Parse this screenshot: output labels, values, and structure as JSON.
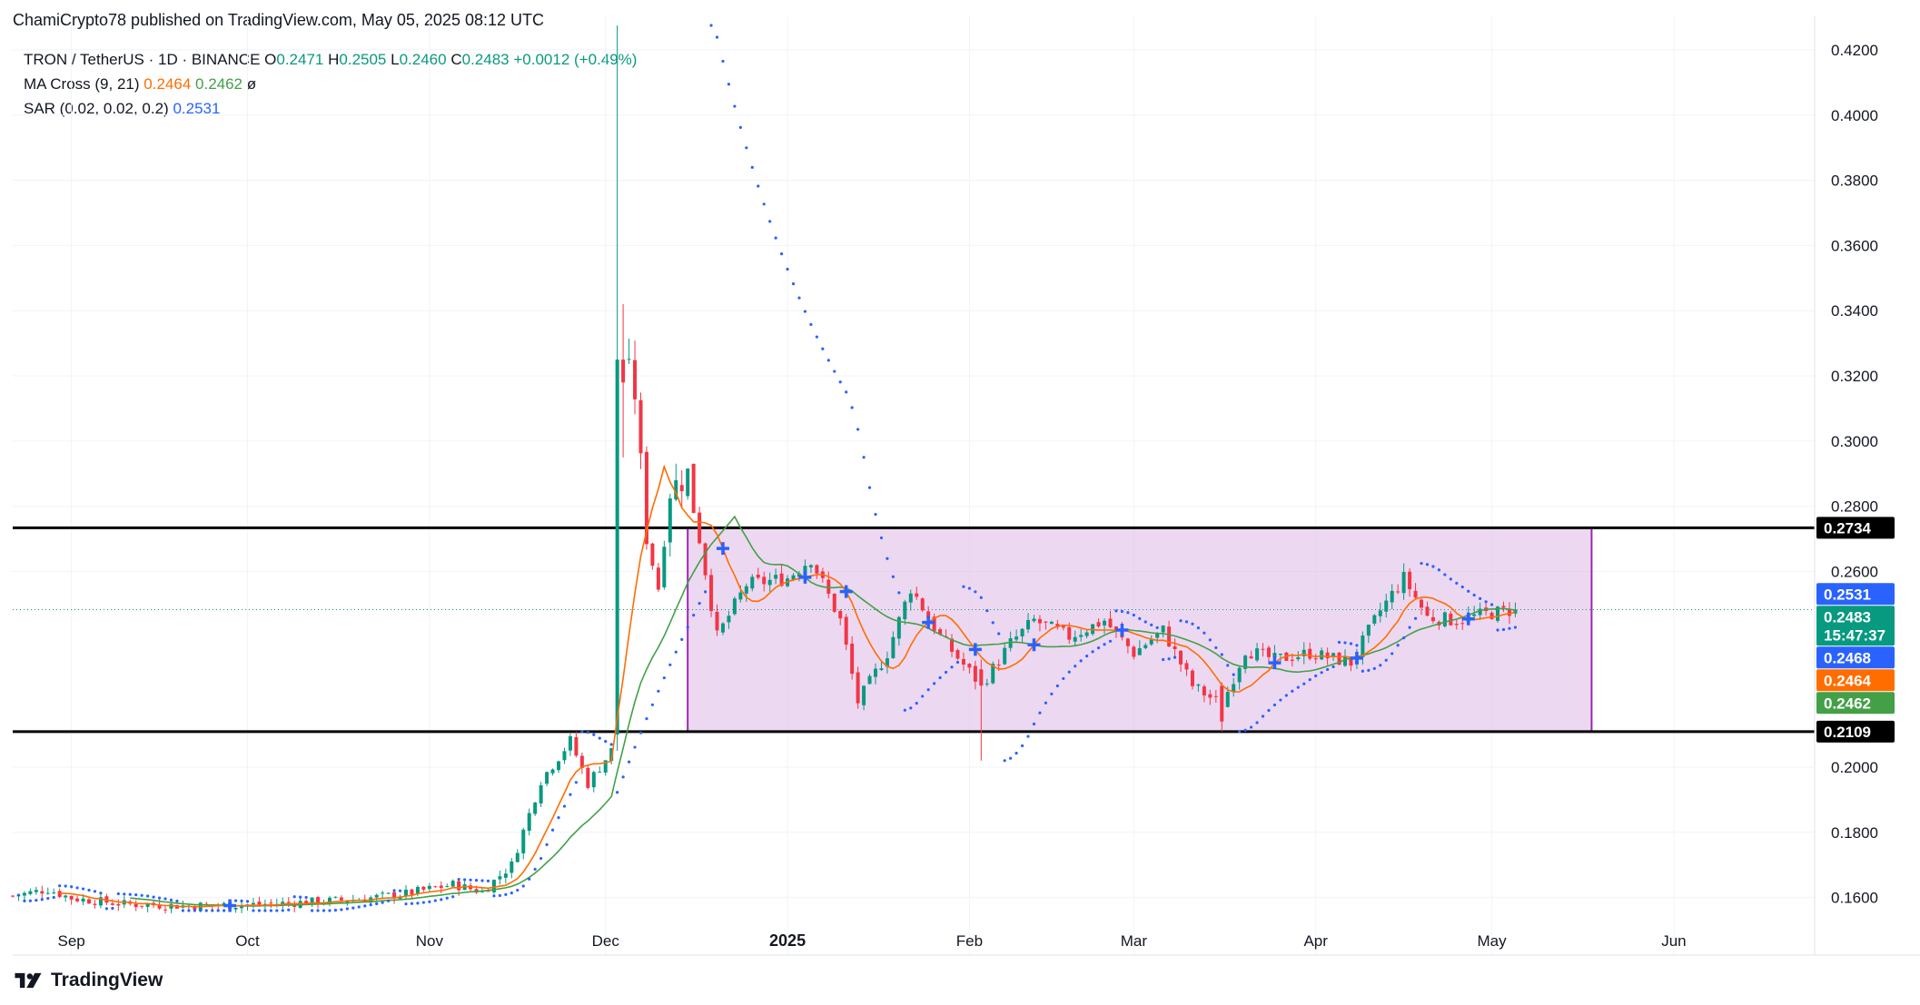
{
  "header": {
    "published_by": "ChamiCrypto78 published on TradingView.com, May 05, 2025 08:12 UTC"
  },
  "legend": {
    "symbol": "TRON / TetherUS · 1D · BINANCE",
    "o_label": "O",
    "o_value": "0.2471",
    "h_label": "H",
    "h_value": "0.2505",
    "l_label": "L",
    "l_value": "0.2460",
    "c_label": "C",
    "c_value": "0.2483",
    "change": "+0.0012 (+0.49%)",
    "ma_name": "MA Cross (9, 21)",
    "ma_fast": "0.2464",
    "ma_slow": "0.2462",
    "ma_extra": "ø",
    "sar_name": "SAR (0.02, 0.02, 0.2)",
    "sar_value": "0.2531"
  },
  "footer": {
    "brand": "TradingView"
  },
  "chart_data": {
    "type": "candlestick",
    "y_axis_ticks": [
      "0.4200",
      "0.4000",
      "0.3800",
      "0.3600",
      "0.3400",
      "0.3200",
      "0.3000",
      "0.2800",
      "0.2600",
      "0.2000",
      "0.1800",
      "0.1600"
    ],
    "x_axis_ticks": [
      {
        "label": "Sep",
        "date": "2024-09-01"
      },
      {
        "label": "Oct",
        "date": "2024-10-01"
      },
      {
        "label": "Nov",
        "date": "2024-11-01"
      },
      {
        "label": "Dec",
        "date": "2024-12-01"
      },
      {
        "label": "2025",
        "date": "2025-01-01"
      },
      {
        "label": "Feb",
        "date": "2025-02-01"
      },
      {
        "label": "Mar",
        "date": "2025-03-01"
      },
      {
        "label": "Apr",
        "date": "2025-04-01"
      },
      {
        "label": "May",
        "date": "2025-05-01"
      },
      {
        "label": "Jun",
        "date": "2025-06-01"
      }
    ],
    "y_range": [
      0.156,
      0.4275
    ],
    "x_range": [
      "2024-08-22",
      "2025-06-25"
    ],
    "price_tags": [
      {
        "label": "0.2734",
        "value": 0.2734,
        "color": "#000000",
        "text_color": "#ffffff"
      },
      {
        "label": "0.2531",
        "value": 0.2531,
        "color": "#2962ff",
        "text_color": "#ffffff"
      },
      {
        "label": "0.2483",
        "sub": "15:47:37",
        "value": 0.2483,
        "color": "#089981",
        "text_color": "#ffffff"
      },
      {
        "label": "0.2468",
        "value": 0.2468,
        "color": "#2962ff",
        "text_color": "#ffffff"
      },
      {
        "label": "0.2464",
        "value": 0.2464,
        "color": "#ff6d00",
        "text_color": "#ffffff"
      },
      {
        "label": "0.2462",
        "value": 0.2462,
        "color": "#43a047",
        "text_color": "#ffffff"
      },
      {
        "label": "0.2109",
        "value": 0.2109,
        "color": "#000000",
        "text_color": "#ffffff"
      }
    ],
    "resistance": 0.2734,
    "support": 0.2109,
    "range_box": {
      "from": "2024-12-15",
      "to": "2025-05-18",
      "top": 0.2734,
      "bottom": 0.2109,
      "color": "#e1bee7",
      "border": "#9c27b0"
    },
    "current_price": 0.2483,
    "colors": {
      "up": "#089981",
      "down": "#f23645",
      "ma_fast": "#ff6d00",
      "ma_slow": "#43a047",
      "sar": "#2962ff",
      "grid": "#f0f3fa"
    },
    "anchors": [
      [
        "2024-08-22",
        0.1605
      ],
      [
        "2024-08-28",
        0.1625
      ],
      [
        "2024-09-01",
        0.1598
      ],
      [
        "2024-09-10",
        0.158
      ],
      [
        "2024-09-20",
        0.1575
      ],
      [
        "2024-10-01",
        0.1578
      ],
      [
        "2024-10-10",
        0.1585
      ],
      [
        "2024-10-20",
        0.1595
      ],
      [
        "2024-10-28",
        0.1612
      ],
      [
        "2024-11-05",
        0.164
      ],
      [
        "2024-11-10",
        0.1618
      ],
      [
        "2024-11-15",
        0.17
      ],
      [
        "2024-11-20",
        0.196
      ],
      [
        "2024-11-25",
        0.208
      ],
      [
        "2024-11-28",
        0.195
      ],
      [
        "2024-12-02",
        0.205
      ],
      [
        "2024-12-04",
        0.325
      ],
      [
        "2024-12-06",
        0.315
      ],
      [
        "2024-12-08",
        0.27
      ],
      [
        "2024-12-10",
        0.255
      ],
      [
        "2024-12-12",
        0.285
      ],
      [
        "2024-12-15",
        0.29
      ],
      [
        "2024-12-18",
        0.26
      ],
      [
        "2024-12-20",
        0.24
      ],
      [
        "2024-12-25",
        0.256
      ],
      [
        "2025-01-01",
        0.258
      ],
      [
        "2025-01-05",
        0.264
      ],
      [
        "2025-01-10",
        0.245
      ],
      [
        "2025-01-13",
        0.22
      ],
      [
        "2025-01-18",
        0.235
      ],
      [
        "2025-01-22",
        0.255
      ],
      [
        "2025-01-27",
        0.24
      ],
      [
        "2025-02-03",
        0.225
      ],
      [
        "2025-02-08",
        0.238
      ],
      [
        "2025-02-12",
        0.245
      ],
      [
        "2025-02-18",
        0.24
      ],
      [
        "2025-02-24",
        0.245
      ],
      [
        "2025-03-01",
        0.235
      ],
      [
        "2025-03-06",
        0.242
      ],
      [
        "2025-03-11",
        0.225
      ],
      [
        "2025-03-16",
        0.219
      ],
      [
        "2025-03-20",
        0.236
      ],
      [
        "2025-03-25",
        0.233
      ],
      [
        "2025-03-31",
        0.235
      ],
      [
        "2025-04-07",
        0.232
      ],
      [
        "2025-04-12",
        0.248
      ],
      [
        "2025-04-16",
        0.258
      ],
      [
        "2025-04-20",
        0.246
      ],
      [
        "2025-04-25",
        0.245
      ],
      [
        "2025-04-30",
        0.247
      ],
      [
        "2025-05-05",
        0.2483
      ]
    ]
  }
}
